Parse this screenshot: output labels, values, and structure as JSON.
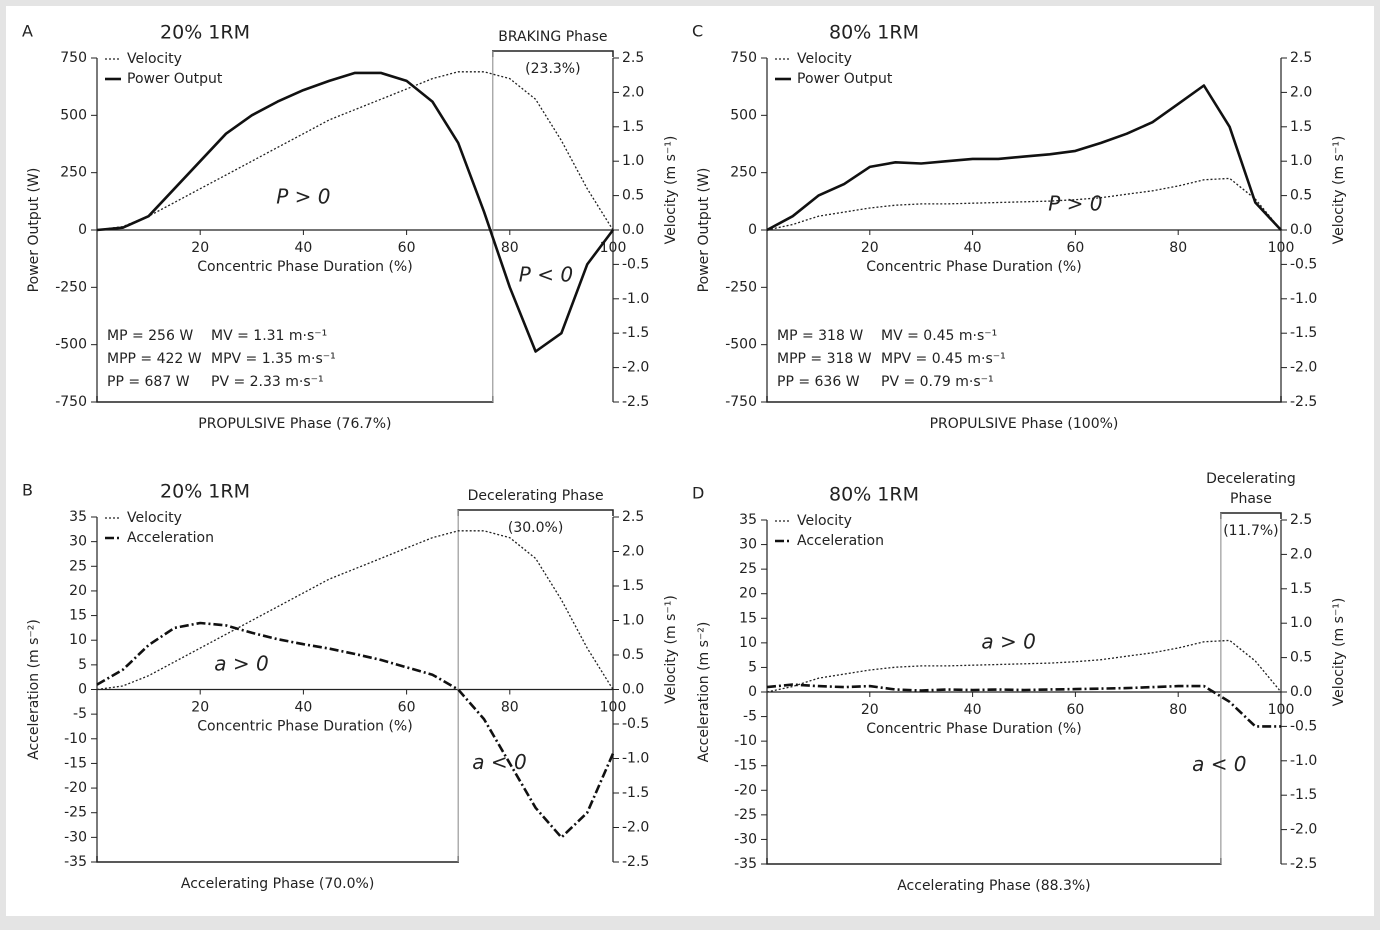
{
  "chart_data": [
    {
      "type": "line",
      "panel": "A",
      "title": "20% 1RM",
      "xlabel": "Concentric Phase Duration (%)",
      "ylabel": "Power Output (W)",
      "y2label": "Velocity (m s⁻¹)",
      "x": [
        0,
        5,
        10,
        15,
        20,
        25,
        30,
        35,
        40,
        45,
        50,
        55,
        60,
        65,
        70,
        75,
        80,
        85,
        90,
        95,
        100
      ],
      "xlim": [
        0,
        100
      ],
      "xticks": [
        20,
        40,
        60,
        80,
        100
      ],
      "ylim": [
        -750,
        750
      ],
      "yticks": [
        -750,
        -500,
        -250,
        0,
        250,
        500,
        750
      ],
      "y2lim": [
        -2.5,
        2.5
      ],
      "y2ticks": [
        -2.5,
        {
          "value": -2,
          "label": "-2.0"
        },
        -1.5,
        {
          "value": -1,
          "label": "-1.0"
        },
        -0.5,
        {
          "value": 0,
          "label": "0.0"
        },
        0.5,
        {
          "value": 1,
          "label": "1.0"
        },
        1.5,
        {
          "value": 2,
          "label": "2.0"
        },
        2.5
      ],
      "series": [
        {
          "name": "Velocity",
          "color": "#222",
          "style": "dotted",
          "axis": "y2",
          "values": [
            0,
            0.05,
            0.2,
            0.4,
            0.6,
            0.8,
            1.0,
            1.2,
            1.4,
            1.6,
            1.75,
            1.9,
            2.05,
            2.2,
            2.3,
            2.3,
            2.2,
            1.9,
            1.3,
            0.6,
            0
          ]
        },
        {
          "name": "Power Output",
          "color": "#111",
          "style": "solid",
          "values": [
            0,
            10,
            60,
            180,
            300,
            420,
            500,
            560,
            610,
            650,
            685,
            685,
            650,
            560,
            380,
            80,
            -250,
            -530,
            -450,
            -150,
            0
          ]
        }
      ],
      "annotations": [
        "P > 0",
        "P < 0"
      ],
      "stats": [
        [
          "MP = 256 W",
          "MV = 1.31 m·s⁻¹"
        ],
        [
          "MPP = 422 W",
          "MPV = 1.35 m·s⁻¹"
        ],
        [
          "PP = 687 W",
          "PV = 2.33 m·s⁻¹"
        ]
      ],
      "phases": [
        {
          "label": "PROPULSIVE Phase (76.7%)",
          "start": 0,
          "end": 76.7,
          "side": "bottom"
        },
        {
          "label": "BRAKING Phase",
          "share": "(23.3%)",
          "start": 76.7,
          "end": 100,
          "side": "top"
        }
      ]
    },
    {
      "type": "line",
      "panel": "B",
      "title": "20% 1RM",
      "xlabel": "Concentric Phase Duration (%)",
      "ylabel": "Acceleration (m s⁻²)",
      "y2label": "Velocity (m s⁻¹)",
      "x": [
        0,
        5,
        10,
        15,
        20,
        25,
        30,
        35,
        40,
        45,
        50,
        55,
        60,
        65,
        70,
        75,
        80,
        85,
        90,
        95,
        100
      ],
      "xlim": [
        0,
        100
      ],
      "xticks": [
        20,
        40,
        60,
        80,
        100
      ],
      "ylim": [
        -35,
        35
      ],
      "yticks": [
        -35,
        -30,
        -25,
        -20,
        -15,
        -10,
        -5,
        0,
        5,
        10,
        15,
        20,
        25,
        30,
        35
      ],
      "y2lim": [
        -2.5,
        2.5
      ],
      "y2ticks": [
        -2.5,
        {
          "value": -2,
          "label": "-2.0"
        },
        -1.5,
        {
          "value": -1,
          "label": "-1.0"
        },
        -0.5,
        {
          "value": 0,
          "label": "0.0"
        },
        0.5,
        {
          "value": 1,
          "label": "1.0"
        },
        1.5,
        {
          "value": 2,
          "label": "2.0"
        },
        2.5
      ],
      "series": [
        {
          "name": "Velocity",
          "color": "#222",
          "style": "dotted",
          "axis": "y2",
          "values": [
            0,
            0.05,
            0.2,
            0.4,
            0.6,
            0.8,
            1.0,
            1.2,
            1.4,
            1.6,
            1.75,
            1.9,
            2.05,
            2.2,
            2.3,
            2.3,
            2.2,
            1.9,
            1.3,
            0.6,
            0
          ]
        },
        {
          "name": "Acceleration",
          "color": "#111",
          "style": "dashdot",
          "values": [
            1,
            4,
            9,
            12.5,
            13.5,
            13,
            11.5,
            10.2,
            9.2,
            8.3,
            7.2,
            6,
            4.5,
            3,
            0,
            -6,
            -15,
            -24,
            -30,
            -25,
            -13
          ]
        }
      ],
      "annotations": [
        "a > 0",
        "a < 0"
      ],
      "phases": [
        {
          "label": "Accelerating Phase (70.0%)",
          "start": 0,
          "end": 70,
          "side": "bottom"
        },
        {
          "label": "Decelerating Phase",
          "share": "(30.0%)",
          "start": 70,
          "end": 100,
          "side": "top"
        }
      ]
    },
    {
      "type": "line",
      "panel": "C",
      "title": "80% 1RM",
      "xlabel": "Concentric Phase Duration (%)",
      "ylabel": "Power Output (W)",
      "y2label": "Velocity (m s⁻¹)",
      "x": [
        0,
        5,
        10,
        15,
        20,
        25,
        30,
        35,
        40,
        45,
        50,
        55,
        60,
        65,
        70,
        75,
        80,
        85,
        90,
        95,
        100
      ],
      "xlim": [
        0,
        100
      ],
      "xticks": [
        20,
        40,
        60,
        80,
        100
      ],
      "ylim": [
        -750,
        750
      ],
      "yticks": [
        -750,
        -500,
        -250,
        0,
        250,
        500,
        750
      ],
      "y2lim": [
        -2.5,
        2.5
      ],
      "y2ticks": [
        -2.5,
        {
          "value": -2,
          "label": "-2.0"
        },
        -1.5,
        {
          "value": -1,
          "label": "-1.0"
        },
        -0.5,
        {
          "value": 0,
          "label": "0.0"
        },
        0.5,
        {
          "value": 1,
          "label": "1.0"
        },
        1.5,
        {
          "value": 2,
          "label": "2.0"
        },
        2.5
      ],
      "series": [
        {
          "name": "Velocity",
          "color": "#222",
          "style": "dotted",
          "axis": "y2",
          "values": [
            0,
            0.08,
            0.2,
            0.26,
            0.32,
            0.36,
            0.38,
            0.38,
            0.39,
            0.4,
            0.41,
            0.42,
            0.44,
            0.47,
            0.52,
            0.57,
            0.64,
            0.73,
            0.75,
            0.45,
            0
          ]
        },
        {
          "name": "Power Output",
          "color": "#111",
          "style": "solid",
          "values": [
            0,
            60,
            150,
            200,
            275,
            295,
            290,
            300,
            310,
            310,
            320,
            330,
            345,
            380,
            420,
            470,
            550,
            630,
            450,
            120,
            0
          ]
        }
      ],
      "annotations": [
        "P > 0"
      ],
      "stats": [
        [
          "MP = 318 W",
          "MV = 0.45 m·s⁻¹"
        ],
        [
          "MPP = 318 W",
          "MPV = 0.45 m·s⁻¹"
        ],
        [
          "PP = 636 W",
          "PV = 0.79 m·s⁻¹"
        ]
      ],
      "phases": [
        {
          "label": "PROPULSIVE Phase (100%)",
          "start": 0,
          "end": 100,
          "side": "bottom"
        }
      ]
    },
    {
      "type": "line",
      "panel": "D",
      "title": "80% 1RM",
      "xlabel": "Concentric Phase Duration (%)",
      "ylabel": "Acceleration (m s⁻²)",
      "y2label": "Velocity (m s⁻¹)",
      "x": [
        0,
        5,
        10,
        15,
        20,
        25,
        30,
        35,
        40,
        45,
        50,
        55,
        60,
        65,
        70,
        75,
        80,
        85,
        90,
        95,
        100
      ],
      "xlim": [
        0,
        100
      ],
      "xticks": [
        20,
        40,
        60,
        80,
        100
      ],
      "ylim": [
        -35,
        35
      ],
      "yticks": [
        -35,
        -30,
        -25,
        -20,
        -15,
        -10,
        -5,
        0,
        5,
        10,
        15,
        20,
        25,
        30,
        35
      ],
      "y2lim": [
        -2.5,
        2.5
      ],
      "y2ticks": [
        -2.5,
        {
          "value": -2,
          "label": "-2.0"
        },
        -1.5,
        {
          "value": -1,
          "label": "-1.0"
        },
        -0.5,
        {
          "value": 0,
          "label": "0.0"
        },
        0.5,
        {
          "value": 1,
          "label": "1.0"
        },
        1.5,
        {
          "value": 2,
          "label": "2.0"
        },
        2.5
      ],
      "series": [
        {
          "name": "Velocity",
          "color": "#222",
          "style": "dotted",
          "axis": "y2",
          "values": [
            0,
            0.08,
            0.2,
            0.26,
            0.32,
            0.36,
            0.38,
            0.38,
            0.39,
            0.4,
            0.41,
            0.42,
            0.44,
            0.47,
            0.52,
            0.57,
            0.64,
            0.73,
            0.75,
            0.45,
            0
          ]
        },
        {
          "name": "Acceleration",
          "color": "#111",
          "style": "dashdot",
          "values": [
            1,
            1.5,
            1.2,
            1,
            1.2,
            0.5,
            0.3,
            0.5,
            0.4,
            0.5,
            0.4,
            0.5,
            0.6,
            0.7,
            0.8,
            1,
            1.2,
            1.2,
            -2,
            -7,
            -7
          ]
        }
      ],
      "annotations": [
        "a > 0",
        "a < 0"
      ],
      "phases": [
        {
          "label": "Accelerating Phase (88.3%)",
          "start": 0,
          "end": 88.3,
          "side": "bottom"
        },
        {
          "label": "Decelerating Phase",
          "share": "(11.7%)",
          "start": 88.3,
          "end": 100,
          "side": "top"
        }
      ]
    }
  ]
}
